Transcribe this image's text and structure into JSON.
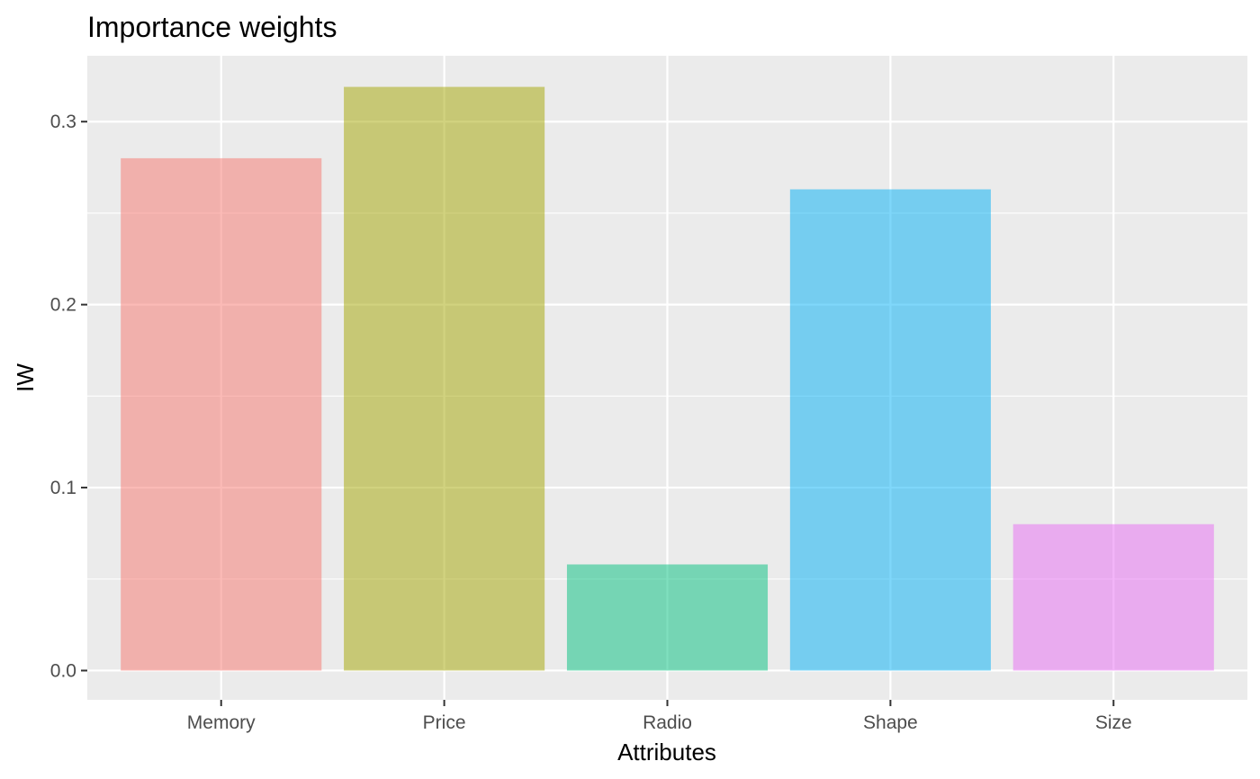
{
  "chart_data": {
    "type": "bar",
    "title": "Importance weights",
    "xlabel": "Attributes",
    "ylabel": "IW",
    "categories": [
      "Memory",
      "Price",
      "Radio",
      "Shape",
      "Size"
    ],
    "values": [
      0.28,
      0.319,
      0.058,
      0.263,
      0.08
    ],
    "colors": [
      "#F8766D",
      "#A3A500",
      "#00BF7D",
      "#00B0F6",
      "#E76BF3"
    ],
    "ylim": [
      -0.016,
      0.336
    ],
    "yticks": [
      0.0,
      0.1,
      0.2,
      0.3
    ],
    "ytick_labels": [
      "0.0",
      "0.1",
      "0.2",
      "0.3"
    ],
    "panel_background": "#EBEBEB",
    "grid_color": "#FFFFFF",
    "grid": true,
    "legend": "none"
  }
}
